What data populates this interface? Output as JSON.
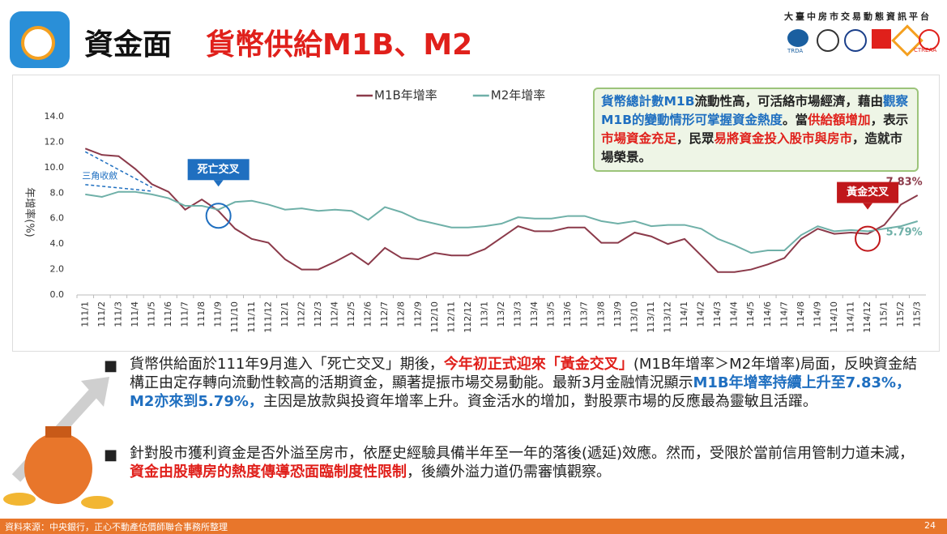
{
  "header": {
    "title": "資金面",
    "subtitle": "貨幣供給M1B、M2",
    "org": "大臺中房市交易動態資訊平台",
    "logos": [
      "TRDA",
      "CTREAA"
    ]
  },
  "chart_data": {
    "type": "line",
    "y_label": "年增率(%)",
    "categories": [
      "111/1",
      "111/2",
      "111/3",
      "111/4",
      "111/5",
      "111/6",
      "111/7",
      "111/8",
      "111/9",
      "111/10",
      "111/11",
      "111/12",
      "112/1",
      "112/2",
      "112/3",
      "112/4",
      "112/5",
      "112/6",
      "112/7",
      "112/8",
      "112/9",
      "112/10",
      "112/11",
      "112/12",
      "113/1",
      "113/2",
      "113/3",
      "113/4",
      "113/5",
      "113/6",
      "113/7",
      "113/8",
      "113/9",
      "113/10",
      "113/11",
      "113/12",
      "114/1",
      "114/2",
      "114/3",
      "114/4",
      "114/5",
      "114/6",
      "114/7",
      "114/8",
      "114/9",
      "114/10",
      "114/11",
      "114/12",
      "115/1",
      "115/2",
      "115/3"
    ],
    "series": [
      {
        "name": "M1B年增率",
        "color": "#8b3a4a",
        "values": [
          11.5,
          11.0,
          10.9,
          9.9,
          8.7,
          8.1,
          6.7,
          7.5,
          6.6,
          5.2,
          4.4,
          4.1,
          2.8,
          2.0,
          2.0,
          2.6,
          3.3,
          2.4,
          3.7,
          2.9,
          2.8,
          3.3,
          3.1,
          3.1,
          3.6,
          4.5,
          5.4,
          5.0,
          5.0,
          5.3,
          5.3,
          4.1,
          4.1,
          4.9,
          4.6,
          4.0,
          4.4,
          3.1,
          1.8,
          1.8,
          2.0,
          2.4,
          2.9,
          4.4,
          5.2,
          4.8,
          4.9,
          4.8,
          5.5,
          7.1,
          7.83
        ],
        "value_labels": [
          null,
          null,
          null,
          null,
          null,
          null,
          null,
          null,
          null,
          null,
          null,
          null,
          null,
          null,
          null,
          null,
          null,
          null,
          null,
          null,
          null,
          null,
          null,
          null,
          null,
          null,
          null,
          null,
          null,
          null,
          null,
          null,
          null,
          null,
          null,
          null,
          null,
          null,
          null,
          null,
          null,
          null,
          null,
          null,
          null,
          null,
          null,
          null,
          null,
          null,
          "7.83%"
        ]
      },
      {
        "name": "M2年增率",
        "color": "#6fb0a8",
        "values": [
          7.9,
          7.7,
          8.1,
          8.1,
          7.9,
          7.6,
          7.0,
          7.0,
          6.7,
          7.3,
          7.4,
          7.1,
          6.7,
          6.8,
          6.6,
          6.7,
          6.6,
          5.9,
          6.9,
          6.5,
          5.9,
          5.6,
          5.3,
          5.3,
          5.4,
          5.6,
          6.1,
          6.0,
          6.0,
          6.2,
          6.2,
          5.8,
          5.6,
          5.8,
          5.4,
          5.5,
          5.5,
          5.2,
          4.4,
          3.9,
          3.3,
          3.5,
          3.5,
          4.7,
          5.4,
          5.0,
          5.1,
          5.0,
          5.2,
          5.4,
          5.79
        ],
        "value_labels": [
          null,
          null,
          null,
          null,
          null,
          null,
          null,
          null,
          null,
          null,
          null,
          null,
          null,
          null,
          null,
          null,
          null,
          null,
          null,
          null,
          null,
          null,
          null,
          null,
          null,
          null,
          null,
          null,
          null,
          null,
          null,
          null,
          null,
          null,
          null,
          null,
          null,
          null,
          null,
          null,
          null,
          null,
          null,
          null,
          null,
          null,
          null,
          null,
          null,
          null,
          "5.79%"
        ]
      }
    ],
    "ylim": [
      0,
      14
    ],
    "yticks": [
      {
        "value": 0,
        "label": "0.0"
      },
      {
        "value": 2,
        "label": "2.0"
      },
      {
        "value": 4,
        "label": "4.0"
      },
      {
        "value": 6,
        "label": "6.0"
      },
      {
        "value": 8,
        "label": "8.0"
      },
      {
        "value": 10,
        "label": "10.0"
      },
      {
        "value": 12,
        "label": "12.0"
      },
      {
        "value": 14,
        "label": "14.0"
      }
    ],
    "legend": "top",
    "annotations": [
      "三角收斂",
      "死亡交叉",
      "黃金交叉"
    ]
  },
  "callout": [
    "貨幣總計數M1B",
    "流動性高，可活絡市場經濟，藉由",
    "觀察M1B的變動情形可掌握資金熱度",
    "。當",
    "供給額增加",
    "，表示",
    "市場資金充足",
    "，民眾",
    "易將資金投入股市與房市",
    "，造就市場榮景。"
  ],
  "bullets": [
    [
      "貨幣供給面於111年9月進入「死亡交叉」期後，",
      "今年初正式迎來「黃金交叉」",
      "(M1B年增率＞M2年增率)局面，反映資金結構正由定存轉向流動性較高的活期資金，顯著提振市場交易動能。最新3月金融情況顯示",
      "M1B年增率持續上升至7.83%，M2亦來到5.79%，",
      "主因是放款與投資年增率上升。資金活水的增加，對股票市場的反應最為靈敏且活躍。"
    ],
    [
      "針對股市獲利資金是否外溢至房市，依歷史經驗具備半年至一年的落後(遞延)效應。然而，受限於當前信用管制力道未減，",
      "資金由股轉房的熱度傳導恐面臨制度性限制",
      "，後續外溢力道仍需審慎觀察。"
    ]
  ],
  "footer": {
    "source": "資料來源：中央銀行，正心不動產估價師聯合事務所整理",
    "page": "24"
  }
}
